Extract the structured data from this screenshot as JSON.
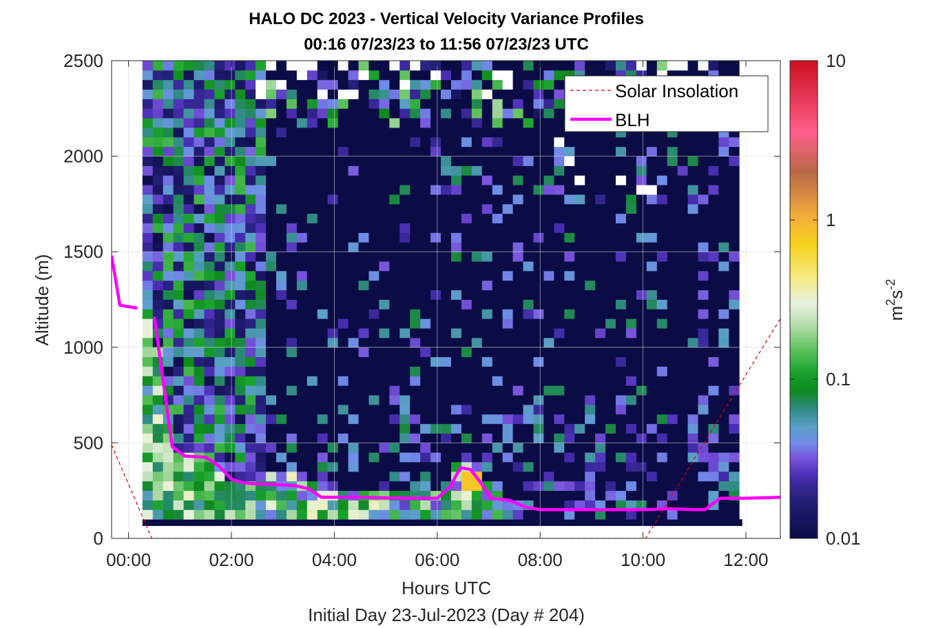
{
  "chart_data": {
    "type": "heatmap",
    "title": "HALO DC 2023 - Vertical Velocity Variance Profiles",
    "subtitle": "00:16 07/23/23 to 11:56 07/23/23  UTC",
    "xlabel": "Hours UTC",
    "xlabel2": "Initial Day 23-Jul-2023 (Day # 204)",
    "ylabel": "Altitude (m)",
    "xlim": [
      -0.33,
      12.67
    ],
    "ylim": [
      0,
      2500
    ],
    "x_ticks": [
      0,
      2,
      4,
      6,
      8,
      10,
      12
    ],
    "x_tick_labels": [
      "00:00",
      "02:00",
      "04:00",
      "06:00",
      "08:00",
      "10:00",
      "12:00"
    ],
    "y_ticks": [
      0,
      500,
      1000,
      1500,
      2000,
      2500
    ],
    "y_tick_labels": [
      "0",
      "500",
      "1000",
      "1500",
      "2000",
      "2500"
    ],
    "grid": true,
    "colorbar": {
      "scale": "log",
      "range": [
        0.01,
        10
      ],
      "ticks": [
        0.01,
        0.1,
        1,
        10
      ],
      "tick_labels": [
        "0.01",
        "0.1",
        "1",
        "10"
      ],
      "label_base": "m",
      "label_sup1": "2",
      "label_mid": "s",
      "label_sup2": "-2"
    },
    "legend": {
      "position": "top-right",
      "entries": [
        {
          "label": "Solar Insolation",
          "color": "#d40000",
          "style": "dashed"
        },
        {
          "label": "BLH",
          "color": "#ff00ff",
          "style": "solid"
        }
      ]
    },
    "heatmap_extent": {
      "x": [
        0.27,
        11.93
      ],
      "y": [
        100,
        2500
      ]
    },
    "series": [
      {
        "name": "BLH",
        "x": [
          -0.33,
          -0.17,
          0.17,
          0.5,
          0.85,
          1.1,
          1.5,
          1.75,
          2.0,
          2.25,
          2.5,
          2.75,
          3.0,
          3.25,
          3.5,
          3.75,
          4.0,
          4.5,
          5.0,
          5.5,
          6.0,
          6.25,
          6.45,
          6.65,
          6.85,
          7.05,
          7.4,
          7.7,
          8.0,
          8.5,
          9.0,
          9.5,
          10.0,
          10.5,
          11.0,
          11.2,
          11.5,
          12.0,
          12.67
        ],
        "y": [
          1480,
          1220,
          1205,
          1160,
          480,
          430,
          425,
          380,
          310,
          290,
          285,
          283,
          280,
          275,
          260,
          215,
          215,
          215,
          212,
          210,
          210,
          270,
          370,
          360,
          290,
          210,
          200,
          165,
          150,
          150,
          150,
          150,
          150,
          155,
          150,
          150,
          210,
          210,
          215
        ]
      },
      {
        "name": "Solar Insolation",
        "x": [
          -0.33,
          0.45,
          10.05,
          12.67
        ],
        "y": [
          490,
          0,
          0,
          1150
        ]
      }
    ],
    "cell_x_step": 0.2,
    "cell_y_step": 50,
    "cell_color_scale": [
      {
        "v": 0.01,
        "color": "#0b0c45"
      },
      {
        "v": 0.018,
        "color": "#25207a"
      },
      {
        "v": 0.025,
        "color": "#4a2fb5"
      },
      {
        "v": 0.032,
        "color": "#7a55dd"
      },
      {
        "v": 0.04,
        "color": "#6f8ce8"
      },
      {
        "v": 0.05,
        "color": "#5ba0c8"
      },
      {
        "v": 0.065,
        "color": "#2f8a82"
      },
      {
        "v": 0.085,
        "color": "#0f8a1f"
      },
      {
        "v": 0.11,
        "color": "#1aa32e"
      },
      {
        "v": 0.15,
        "color": "#5ac05a"
      },
      {
        "v": 0.22,
        "color": "#b7ddae"
      },
      {
        "v": 0.3,
        "color": "#e8f2e0"
      },
      {
        "v": 0.45,
        "color": "#f5e87a"
      },
      {
        "v": 0.7,
        "color": "#f6d21e"
      },
      {
        "v": 1.0,
        "color": "#f5b23a"
      },
      {
        "v": 2.0,
        "color": "#b86848"
      },
      {
        "v": 3.5,
        "color": "#ff5f8a"
      },
      {
        "v": 10.0,
        "color": "#cc1020"
      }
    ]
  }
}
